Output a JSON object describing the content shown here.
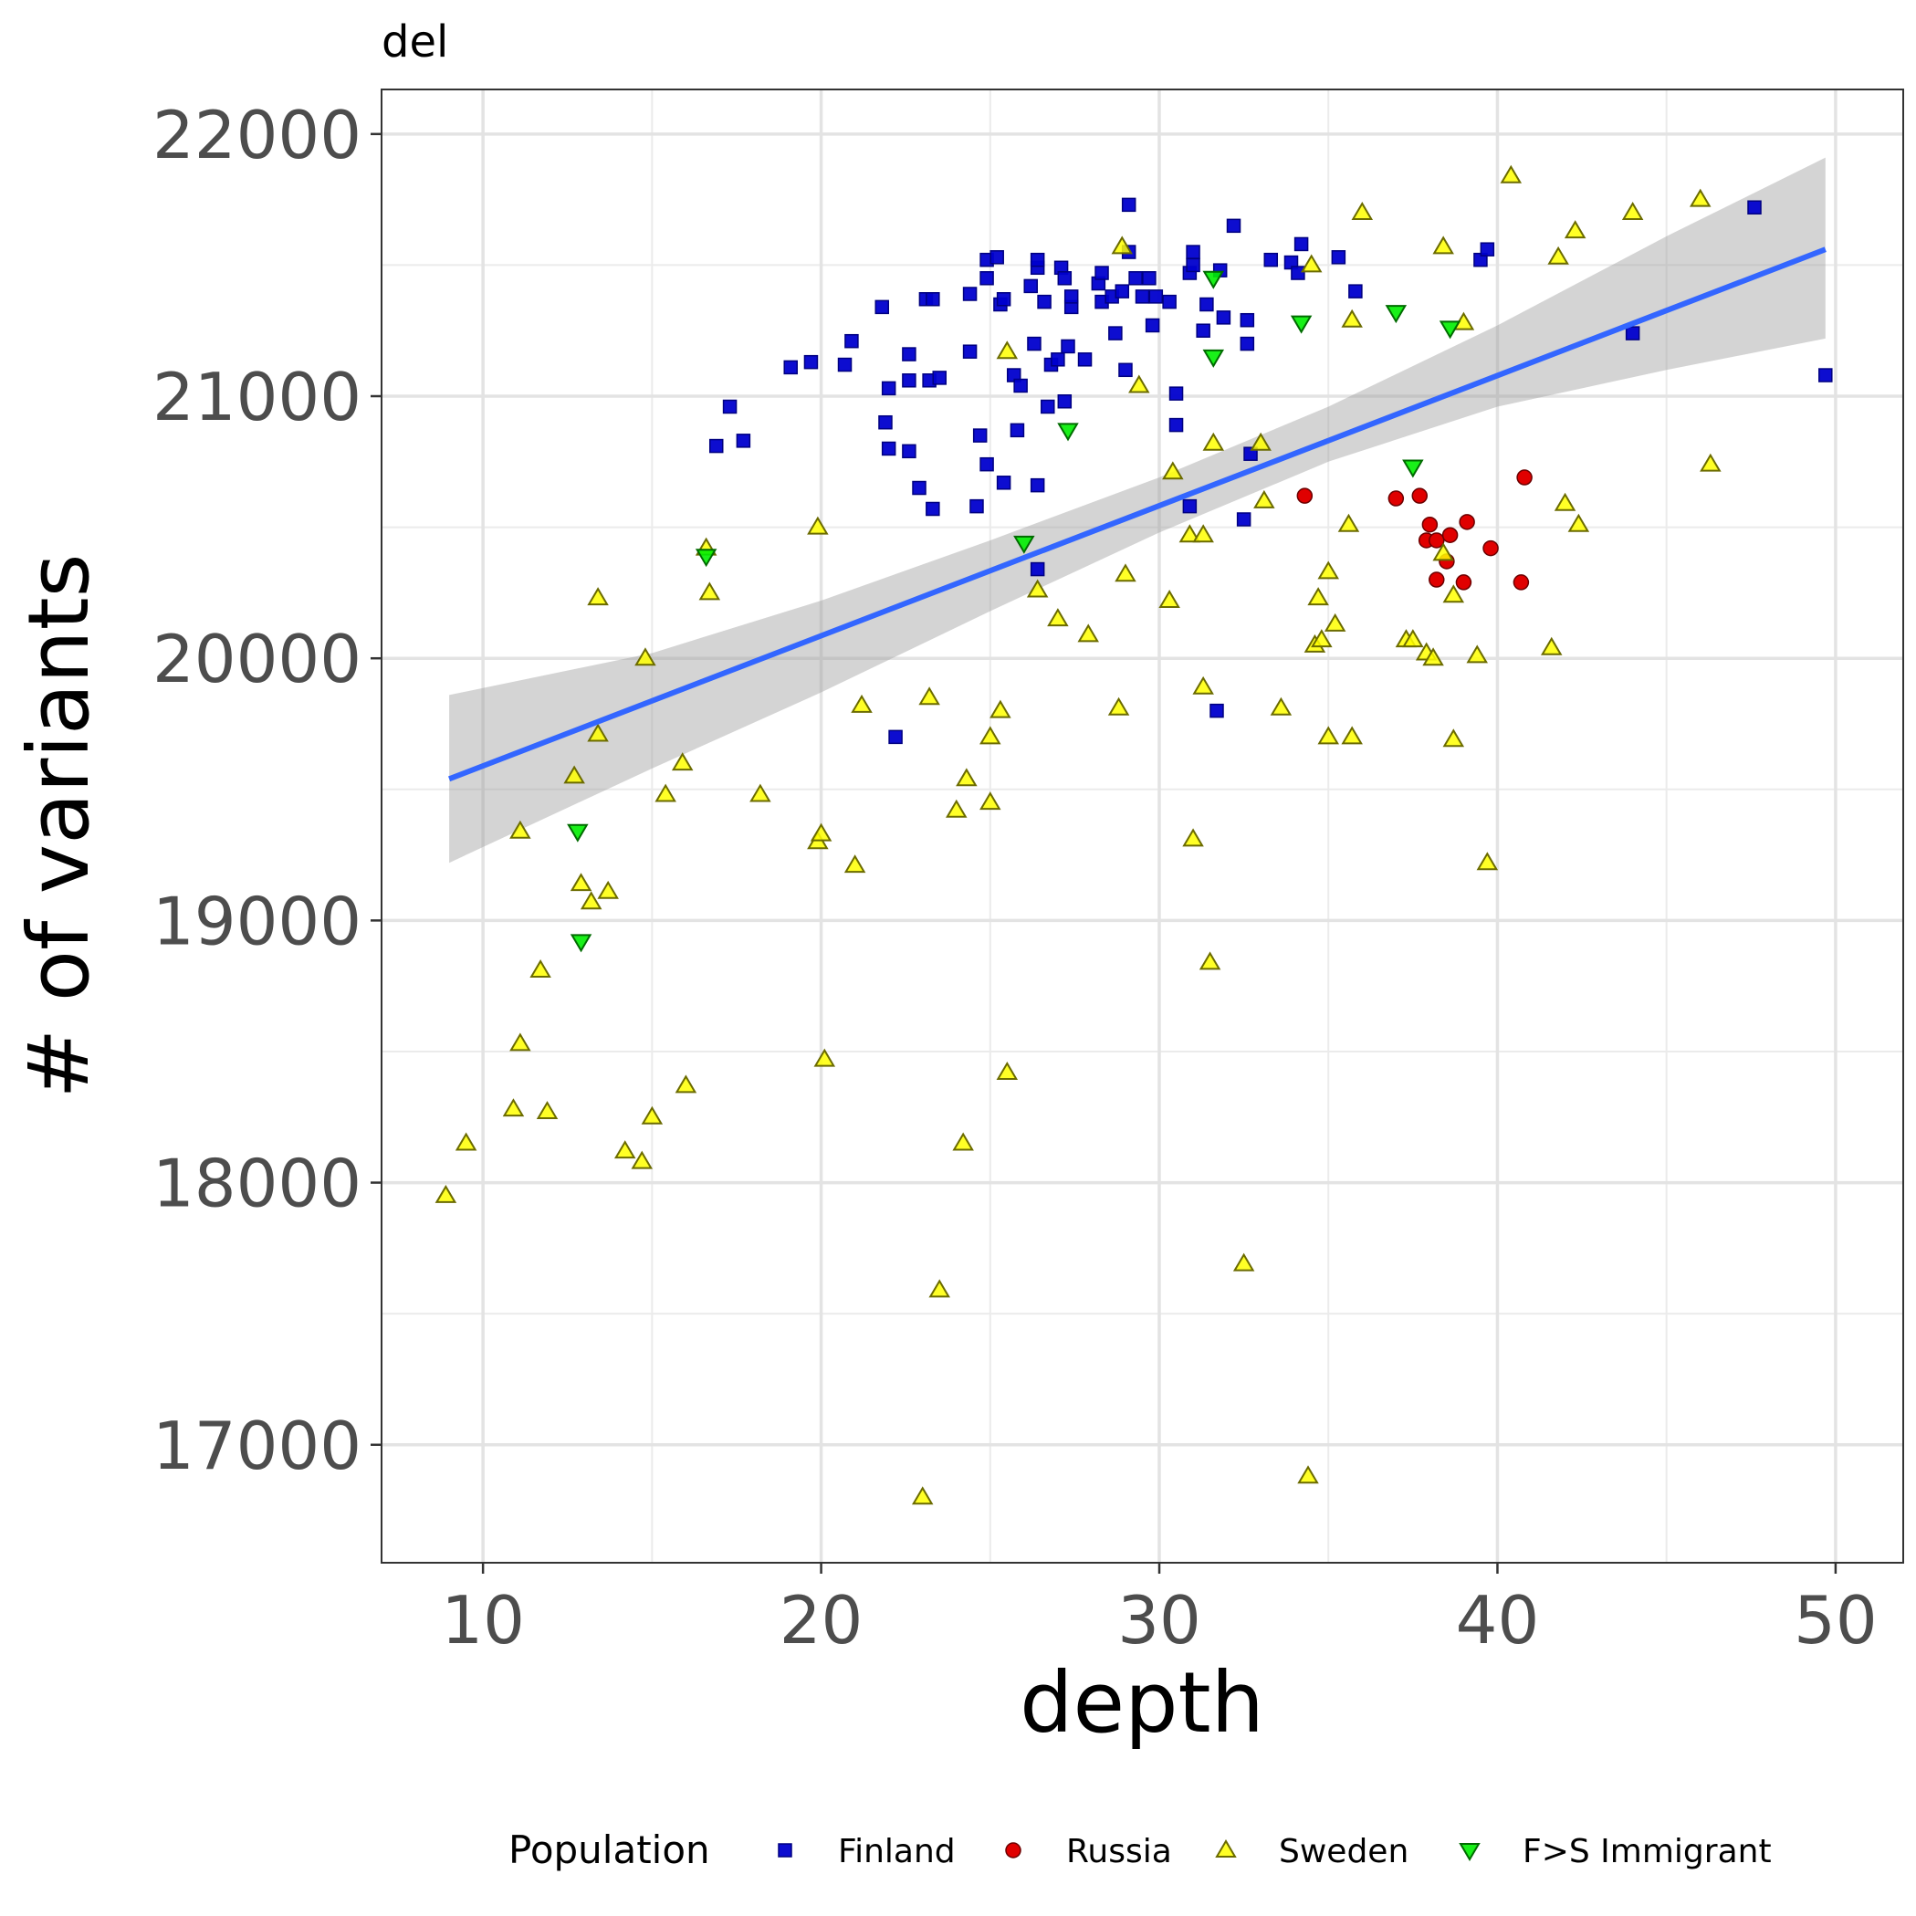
{
  "chart_data": {
    "type": "scatter",
    "facet_label": "del",
    "xlabel": "depth",
    "ylabel": "# of variants",
    "xlim": [
      7,
      52
    ],
    "ylim": [
      16550,
      22170
    ],
    "x_ticks": [
      10,
      20,
      30,
      40,
      50
    ],
    "y_ticks": [
      17000,
      18000,
      19000,
      20000,
      21000,
      22000
    ],
    "grid": true,
    "legend": {
      "title": "Population",
      "position": "bottom"
    },
    "trend": {
      "method": "linear regression",
      "color": "#3366ff",
      "band_color": "#999999",
      "line": [
        [
          9,
          19540
        ],
        [
          49.7,
          21560
        ]
      ],
      "band_upper": [
        [
          9,
          19860
        ],
        [
          15,
          20020
        ],
        [
          20,
          20220
        ],
        [
          25,
          20450
        ],
        [
          30,
          20690
        ],
        [
          35,
          20960
        ],
        [
          40,
          21270
        ],
        [
          45,
          21610
        ],
        [
          49.7,
          21910
        ]
      ],
      "band_lower": [
        [
          9,
          19220
        ],
        [
          15,
          19580
        ],
        [
          20,
          19870
        ],
        [
          25,
          20180
        ],
        [
          30,
          20480
        ],
        [
          35,
          20750
        ],
        [
          40,
          20960
        ],
        [
          45,
          21100
        ],
        [
          49.7,
          21220
        ]
      ]
    },
    "series": [
      {
        "name": "Finland",
        "marker": "square",
        "color": "#0000cd",
        "points": [
          [
            16.9,
            20810
          ],
          [
            17.3,
            20960
          ],
          [
            17.7,
            20830
          ],
          [
            19.1,
            21110
          ],
          [
            19.7,
            21130
          ],
          [
            20.7,
            21120
          ],
          [
            20.9,
            21210
          ],
          [
            21.8,
            21340
          ],
          [
            21.9,
            20900
          ],
          [
            22.0,
            21030
          ],
          [
            22.0,
            20800
          ],
          [
            22.6,
            21160
          ],
          [
            22.6,
            20790
          ],
          [
            22.6,
            21060
          ],
          [
            22.9,
            20650
          ],
          [
            23.1,
            21370
          ],
          [
            23.2,
            21060
          ],
          [
            23.3,
            20570
          ],
          [
            23.3,
            21370
          ],
          [
            23.5,
            21070
          ],
          [
            24.4,
            21390
          ],
          [
            24.4,
            21170
          ],
          [
            24.6,
            20580
          ],
          [
            24.7,
            20850
          ],
          [
            24.9,
            21520
          ],
          [
            24.9,
            21450
          ],
          [
            24.9,
            20740
          ],
          [
            25.2,
            21530
          ],
          [
            25.3,
            21350
          ],
          [
            25.4,
            21370
          ],
          [
            25.4,
            20670
          ],
          [
            25.7,
            21080
          ],
          [
            25.8,
            20870
          ],
          [
            25.9,
            21040
          ],
          [
            26.2,
            21420
          ],
          [
            26.3,
            21200
          ],
          [
            26.4,
            21490
          ],
          [
            26.4,
            21520
          ],
          [
            26.4,
            20660
          ],
          [
            26.6,
            21360
          ],
          [
            26.7,
            20960
          ],
          [
            26.8,
            21120
          ],
          [
            27.0,
            21140
          ],
          [
            27.1,
            21490
          ],
          [
            27.2,
            21450
          ],
          [
            27.2,
            20980
          ],
          [
            27.3,
            21190
          ],
          [
            27.4,
            21340
          ],
          [
            27.4,
            21380
          ],
          [
            27.8,
            21140
          ],
          [
            28.2,
            21430
          ],
          [
            28.3,
            21470
          ],
          [
            28.3,
            21360
          ],
          [
            28.6,
            21380
          ],
          [
            28.7,
            21240
          ],
          [
            28.9,
            21400
          ],
          [
            29.0,
            21100
          ],
          [
            29.1,
            21550
          ],
          [
            29.1,
            21730
          ],
          [
            29.3,
            21450
          ],
          [
            29.5,
            21380
          ],
          [
            29.7,
            21450
          ],
          [
            29.8,
            21270
          ],
          [
            29.9,
            21380
          ],
          [
            30.3,
            21360
          ],
          [
            30.5,
            21010
          ],
          [
            30.5,
            20890
          ],
          [
            30.9,
            21470
          ],
          [
            31.0,
            21500
          ],
          [
            31.0,
            21550
          ],
          [
            31.3,
            21250
          ],
          [
            31.4,
            21350
          ],
          [
            31.8,
            21480
          ],
          [
            31.9,
            21300
          ],
          [
            32.2,
            21650
          ],
          [
            32.5,
            20530
          ],
          [
            32.6,
            21290
          ],
          [
            32.6,
            21200
          ],
          [
            33.3,
            21520
          ],
          [
            33.9,
            21510
          ],
          [
            34.1,
            21470
          ],
          [
            34.2,
            21580
          ],
          [
            35.3,
            21530
          ],
          [
            35.8,
            21400
          ],
          [
            39.5,
            21520
          ],
          [
            39.7,
            21560
          ],
          [
            22.2,
            19700
          ],
          [
            31.7,
            19800
          ],
          [
            26.4,
            20340
          ],
          [
            30.9,
            20580
          ],
          [
            32.7,
            20780
          ],
          [
            44.0,
            21240
          ],
          [
            47.6,
            21720
          ],
          [
            49.7,
            21080
          ]
        ]
      },
      {
        "name": "Russia",
        "marker": "circle",
        "color": "#e00000",
        "points": [
          [
            34.3,
            20620
          ],
          [
            37.0,
            20610
          ],
          [
            37.7,
            20620
          ],
          [
            37.9,
            20450
          ],
          [
            38.0,
            20510
          ],
          [
            38.2,
            20450
          ],
          [
            38.2,
            20300
          ],
          [
            38.5,
            20370
          ],
          [
            38.6,
            20470
          ],
          [
            39.0,
            20290
          ],
          [
            39.1,
            20520
          ],
          [
            39.8,
            20420
          ],
          [
            40.8,
            20690
          ],
          [
            40.7,
            20290
          ]
        ]
      },
      {
        "name": "Sweden",
        "marker": "triangle-up",
        "color": "#ffff00",
        "points": [
          [
            8.9,
            17950
          ],
          [
            9.5,
            18150
          ],
          [
            10.9,
            18280
          ],
          [
            11.1,
            18530
          ],
          [
            11.1,
            19340
          ],
          [
            11.7,
            18810
          ],
          [
            11.9,
            18270
          ],
          [
            12.7,
            19550
          ],
          [
            12.9,
            19140
          ],
          [
            13.2,
            19070
          ],
          [
            13.4,
            20230
          ],
          [
            13.4,
            19710
          ],
          [
            13.7,
            19110
          ],
          [
            14.2,
            18120
          ],
          [
            14.7,
            18080
          ],
          [
            14.8,
            20000
          ],
          [
            15.0,
            18250
          ],
          [
            15.4,
            19480
          ],
          [
            15.9,
            19600
          ],
          [
            16.0,
            18370
          ],
          [
            16.6,
            20420
          ],
          [
            16.7,
            20250
          ],
          [
            18.2,
            19480
          ],
          [
            19.9,
            20500
          ],
          [
            19.9,
            19300
          ],
          [
            20.0,
            19330
          ],
          [
            20.1,
            18470
          ],
          [
            21.0,
            19210
          ],
          [
            21.2,
            19820
          ],
          [
            23.0,
            16800
          ],
          [
            23.2,
            19850
          ],
          [
            23.5,
            17590
          ],
          [
            24.0,
            19420
          ],
          [
            24.2,
            18150
          ],
          [
            24.3,
            19540
          ],
          [
            25.0,
            19700
          ],
          [
            25.0,
            19450
          ],
          [
            25.3,
            19800
          ],
          [
            25.5,
            21170
          ],
          [
            25.5,
            18420
          ],
          [
            26.4,
            20260
          ],
          [
            27.0,
            20150
          ],
          [
            27.9,
            20090
          ],
          [
            28.8,
            19810
          ],
          [
            28.9,
            21570
          ],
          [
            29.0,
            20320
          ],
          [
            29.4,
            21040
          ],
          [
            30.3,
            20220
          ],
          [
            30.4,
            20710
          ],
          [
            30.9,
            20470
          ],
          [
            31.0,
            19310
          ],
          [
            31.3,
            20470
          ],
          [
            31.3,
            19890
          ],
          [
            31.5,
            18840
          ],
          [
            31.6,
            20820
          ],
          [
            32.5,
            17690
          ],
          [
            33.0,
            20820
          ],
          [
            33.1,
            20600
          ],
          [
            33.6,
            19810
          ],
          [
            34.4,
            16880
          ],
          [
            34.5,
            21500
          ],
          [
            34.6,
            20050
          ],
          [
            34.7,
            20230
          ],
          [
            34.8,
            20070
          ],
          [
            35.0,
            20330
          ],
          [
            35.0,
            19700
          ],
          [
            35.2,
            20130
          ],
          [
            35.6,
            20510
          ],
          [
            35.7,
            21290
          ],
          [
            35.7,
            19700
          ],
          [
            36.0,
            21700
          ],
          [
            37.3,
            20070
          ],
          [
            37.5,
            20070
          ],
          [
            37.9,
            20020
          ],
          [
            38.1,
            20000
          ],
          [
            38.4,
            20400
          ],
          [
            38.4,
            21570
          ],
          [
            38.7,
            19690
          ],
          [
            38.7,
            20240
          ],
          [
            39.0,
            21280
          ],
          [
            39.4,
            20010
          ],
          [
            39.7,
            19220
          ],
          [
            40.4,
            21840
          ],
          [
            41.6,
            20040
          ],
          [
            41.8,
            21530
          ],
          [
            42.0,
            20590
          ],
          [
            42.3,
            21630
          ],
          [
            42.4,
            20510
          ],
          [
            44.0,
            21700
          ],
          [
            46.0,
            21750
          ],
          [
            46.3,
            20740
          ]
        ]
      },
      {
        "name": "F>S Immigrant",
        "marker": "triangle-down",
        "color": "#00ee00",
        "points": [
          [
            12.8,
            19340
          ],
          [
            12.9,
            18920
          ],
          [
            16.6,
            20390
          ],
          [
            26.0,
            20440
          ],
          [
            27.3,
            20870
          ],
          [
            31.6,
            21450
          ],
          [
            31.6,
            21150
          ],
          [
            34.2,
            21280
          ],
          [
            37.0,
            21320
          ],
          [
            37.5,
            20730
          ],
          [
            38.6,
            21260
          ]
        ]
      }
    ]
  }
}
